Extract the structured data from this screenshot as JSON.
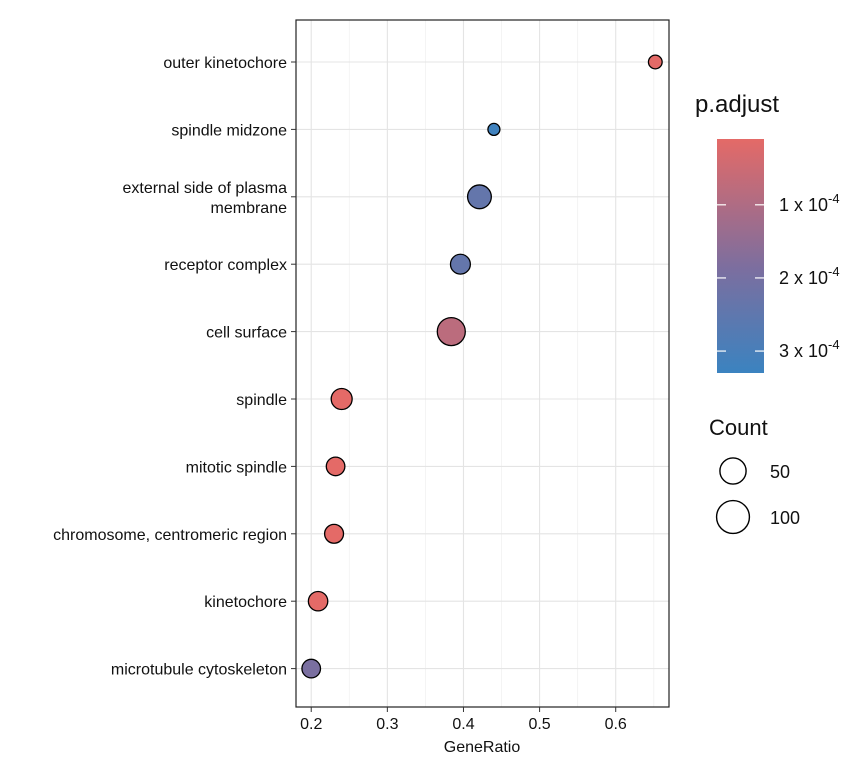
{
  "chart_data": {
    "type": "scatter",
    "title": "",
    "xlabel": "GeneRatio",
    "ylabel": "",
    "xlim": [
      0.18,
      0.67
    ],
    "x_ticks": [
      0.2,
      0.3,
      0.4,
      0.5,
      0.6
    ],
    "x_tick_labels": [
      "0.2",
      "0.3",
      "0.4",
      "0.5",
      "0.6"
    ],
    "grid": true,
    "terms": [
      {
        "label": [
          "outer kinetochore"
        ],
        "gene_ratio": 0.652,
        "count": 15,
        "p_adjust": 1e-05
      },
      {
        "label": [
          "spindle midzone"
        ],
        "gene_ratio": 0.44,
        "count": 8,
        "p_adjust": 0.00032
      },
      {
        "label": [
          "external side of plasma",
          "membrane"
        ],
        "gene_ratio": 0.421,
        "count": 75,
        "p_adjust": 0.00024
      },
      {
        "label": [
          "receptor complex"
        ],
        "gene_ratio": 0.396,
        "count": 48,
        "p_adjust": 0.00024
      },
      {
        "label": [
          "cell surface"
        ],
        "gene_ratio": 0.384,
        "count": 110,
        "p_adjust": 8e-05
      },
      {
        "label": [
          "spindle"
        ],
        "gene_ratio": 0.24,
        "count": 55,
        "p_adjust": 1e-05
      },
      {
        "label": [
          "mitotic spindle"
        ],
        "gene_ratio": 0.232,
        "count": 40,
        "p_adjust": 1e-05
      },
      {
        "label": [
          "chromosome, centromeric region"
        ],
        "gene_ratio": 0.23,
        "count": 42,
        "p_adjust": 1e-05
      },
      {
        "label": [
          "kinetochore"
        ],
        "gene_ratio": 0.209,
        "count": 45,
        "p_adjust": 1e-05
      },
      {
        "label": [
          "microtubule cytoskeleton"
        ],
        "gene_ratio": 0.2,
        "count": 40,
        "p_adjust": 0.00019
      }
    ],
    "color_legend": {
      "title": "p.adjust",
      "low_color": "#E46A67",
      "mid_color": "#7C6E9F",
      "high_color": "#3B83C0",
      "domain": [
        1e-05,
        0.00033
      ],
      "breaks": [
        0.0001,
        0.0002,
        0.0003
      ],
      "break_labels": [
        "1 x 10",
        "2 x 10",
        "3 x 10"
      ],
      "break_exponent": "-4"
    },
    "size_legend": {
      "title": "Count",
      "breaks": [
        50,
        100
      ],
      "break_labels": [
        "50",
        "100"
      ],
      "size_range_counts": [
        8,
        110
      ]
    }
  }
}
